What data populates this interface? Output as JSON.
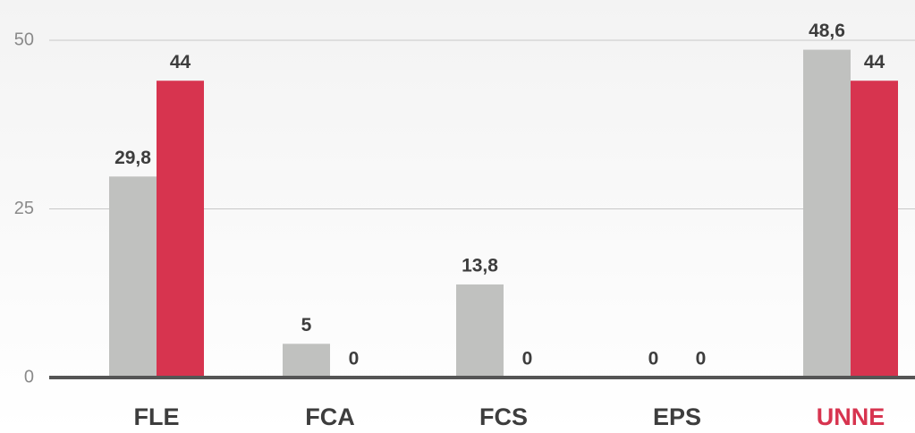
{
  "chart_data": {
    "type": "bar",
    "categories": [
      "FLE",
      "FCA",
      "FCS",
      "EPS",
      "UNNE"
    ],
    "category_label_colors": [
      "#3d3d3d",
      "#3d3d3d",
      "#3d3d3d",
      "#3d3d3d",
      "#d7344f"
    ],
    "series": [
      {
        "color": "#c0c1bf",
        "values": [
          29.8,
          5,
          13.8,
          0,
          48.6
        ],
        "value_labels": [
          "29,8",
          "5",
          "13,8",
          "0",
          "48,6"
        ]
      },
      {
        "color": "#d7344f",
        "values": [
          44,
          0,
          0,
          0,
          44
        ],
        "value_labels": [
          "44",
          "0",
          "0",
          "0",
          "44"
        ]
      }
    ],
    "ylim": [
      0,
      50
    ],
    "yticks": [
      0,
      25,
      50
    ],
    "grid": true
  }
}
